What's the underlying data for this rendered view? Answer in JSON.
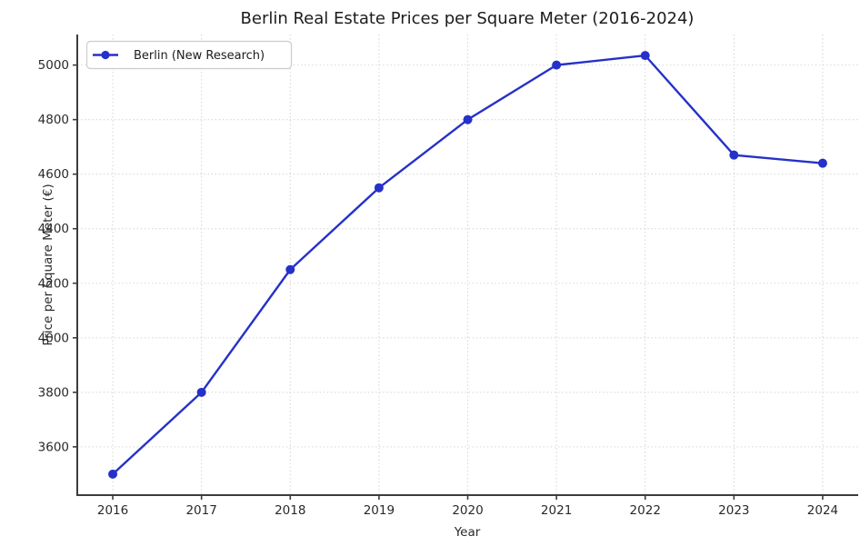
{
  "chart_data": {
    "type": "line",
    "title": "Berlin Real Estate Prices per Square Meter (2016-2024)",
    "xlabel": "Year",
    "ylabel": "Price per Square Meter (€)",
    "x": [
      2016,
      2017,
      2018,
      2019,
      2020,
      2021,
      2022,
      2023,
      2024
    ],
    "series": [
      {
        "name": "Berlin (New Research)",
        "values": [
          3500,
          3800,
          4250,
          4550,
          4800,
          5000,
          5035,
          4670,
          4640
        ],
        "color": "#2531c8",
        "marker": "circle",
        "line_style": "solid"
      }
    ],
    "xticks": [
      2016,
      2017,
      2018,
      2019,
      2020,
      2021,
      2022,
      2023,
      2024
    ],
    "yticks": [
      3600,
      3800,
      4000,
      4200,
      4400,
      4600,
      4800,
      5000
    ],
    "xlim": [
      2015.6,
      2024.4
    ],
    "ylim": [
      3423,
      5112
    ],
    "grid": true,
    "grid_style": "dotted",
    "legend": {
      "position": "upper-left",
      "labels": [
        "Berlin (New Research)"
      ]
    },
    "colors": {
      "line": "#2531c8",
      "spine": "#3c3c3c",
      "grid": "#d7d7d7",
      "tick_text": "#2a2a2a",
      "title_text": "#1c1c1c",
      "legend_border": "#cccccc",
      "background": "#ffffff"
    }
  }
}
